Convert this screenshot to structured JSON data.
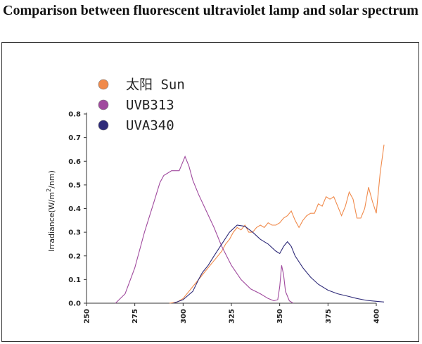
{
  "title": "Comparison between fluorescent ultraviolet lamp and solar spectrum",
  "chart_data": {
    "type": "line",
    "title": "Comparison between fluorescent ultraviolet lamp and solar spectrum",
    "xlabel": "",
    "ylabel_prefix": "Irradiance(W/m",
    "ylabel_sup": "2",
    "ylabel_suffix": "/nm)",
    "xlim": [
      250,
      400
    ],
    "ylim": [
      0,
      0.8
    ],
    "x_ticks": [
      "250",
      "275",
      "300",
      "325",
      "350",
      "375",
      "400"
    ],
    "y_ticks": [
      "0.0",
      "0.1",
      "0.2",
      "0.3",
      "0.4",
      "0.5",
      "0.6",
      "0.7",
      "0.8"
    ],
    "legend_position": "top-left",
    "series": [
      {
        "name": "太阳 Sun",
        "color": "#f08a4b",
        "points": [
          [
            293,
            0.0
          ],
          [
            297,
            0.005
          ],
          [
            300,
            0.02
          ],
          [
            303,
            0.05
          ],
          [
            306,
            0.08
          ],
          [
            309,
            0.11
          ],
          [
            312,
            0.14
          ],
          [
            315,
            0.17
          ],
          [
            318,
            0.2
          ],
          [
            320,
            0.22
          ],
          [
            322,
            0.25
          ],
          [
            324,
            0.27
          ],
          [
            326,
            0.3
          ],
          [
            328,
            0.32
          ],
          [
            330,
            0.31
          ],
          [
            332,
            0.33
          ],
          [
            334,
            0.3
          ],
          [
            336,
            0.3
          ],
          [
            338,
            0.32
          ],
          [
            340,
            0.33
          ],
          [
            342,
            0.32
          ],
          [
            344,
            0.34
          ],
          [
            346,
            0.33
          ],
          [
            348,
            0.33
          ],
          [
            350,
            0.34
          ],
          [
            352,
            0.36
          ],
          [
            354,
            0.37
          ],
          [
            356,
            0.39
          ],
          [
            358,
            0.35
          ],
          [
            360,
            0.32
          ],
          [
            362,
            0.35
          ],
          [
            364,
            0.37
          ],
          [
            366,
            0.38
          ],
          [
            368,
            0.38
          ],
          [
            370,
            0.42
          ],
          [
            372,
            0.41
          ],
          [
            374,
            0.45
          ],
          [
            376,
            0.44
          ],
          [
            378,
            0.45
          ],
          [
            380,
            0.41
          ],
          [
            382,
            0.37
          ],
          [
            384,
            0.41
          ],
          [
            386,
            0.47
          ],
          [
            388,
            0.44
          ],
          [
            390,
            0.36
          ],
          [
            392,
            0.36
          ],
          [
            394,
            0.4
          ],
          [
            396,
            0.49
          ],
          [
            398,
            0.43
          ],
          [
            400,
            0.38
          ],
          [
            402,
            0.55
          ],
          [
            404,
            0.67
          ]
        ]
      },
      {
        "name": "UVB313",
        "color": "#a04a9e",
        "points": [
          [
            265,
            0.0
          ],
          [
            270,
            0.04
          ],
          [
            275,
            0.15
          ],
          [
            280,
            0.3
          ],
          [
            285,
            0.43
          ],
          [
            288,
            0.51
          ],
          [
            290,
            0.54
          ],
          [
            292,
            0.55
          ],
          [
            294,
            0.56
          ],
          [
            296,
            0.56
          ],
          [
            298,
            0.56
          ],
          [
            300,
            0.6
          ],
          [
            301,
            0.62
          ],
          [
            303,
            0.58
          ],
          [
            305,
            0.52
          ],
          [
            308,
            0.46
          ],
          [
            312,
            0.39
          ],
          [
            316,
            0.32
          ],
          [
            320,
            0.24
          ],
          [
            325,
            0.16
          ],
          [
            330,
            0.1
          ],
          [
            335,
            0.06
          ],
          [
            340,
            0.04
          ],
          [
            344,
            0.02
          ],
          [
            347,
            0.01
          ],
          [
            349,
            0.015
          ],
          [
            350,
            0.07
          ],
          [
            351,
            0.16
          ],
          [
            352,
            0.12
          ],
          [
            353,
            0.05
          ],
          [
            355,
            0.01
          ],
          [
            357,
            0.0
          ]
        ]
      },
      {
        "name": "UVA340",
        "color": "#2e2a78",
        "points": [
          [
            295,
            0.0
          ],
          [
            300,
            0.015
          ],
          [
            305,
            0.05
          ],
          [
            308,
            0.1
          ],
          [
            310,
            0.13
          ],
          [
            313,
            0.16
          ],
          [
            316,
            0.2
          ],
          [
            320,
            0.25
          ],
          [
            324,
            0.3
          ],
          [
            328,
            0.33
          ],
          [
            332,
            0.325
          ],
          [
            336,
            0.3
          ],
          [
            340,
            0.27
          ],
          [
            344,
            0.25
          ],
          [
            348,
            0.22
          ],
          [
            350,
            0.21
          ],
          [
            352,
            0.24
          ],
          [
            353,
            0.25
          ],
          [
            354,
            0.26
          ],
          [
            355,
            0.25
          ],
          [
            356,
            0.24
          ],
          [
            358,
            0.2
          ],
          [
            362,
            0.15
          ],
          [
            366,
            0.11
          ],
          [
            370,
            0.08
          ],
          [
            375,
            0.055
          ],
          [
            380,
            0.04
          ],
          [
            385,
            0.03
          ],
          [
            390,
            0.02
          ],
          [
            395,
            0.012
          ],
          [
            400,
            0.008
          ],
          [
            404,
            0.005
          ]
        ]
      }
    ]
  }
}
